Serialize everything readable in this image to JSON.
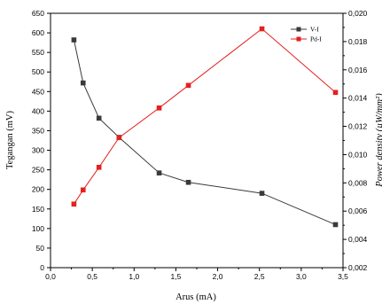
{
  "chart_data": {
    "type": "line",
    "xlabel": "Arus (mA)",
    "ylabel_left": "Tegangan (mV)",
    "ylabel_right": "Power density (µW/mm²)",
    "xlim": [
      0.0,
      3.5
    ],
    "ylim_left": [
      0,
      650
    ],
    "ylim_right": [
      0.002,
      0.02
    ],
    "x_ticks": [
      "0,0",
      "0,5",
      "1,0",
      "1,5",
      "2,0",
      "2,5",
      "3,0",
      "3,5"
    ],
    "y_left_ticks": [
      "0",
      "50",
      "100",
      "150",
      "200",
      "250",
      "300",
      "350",
      "400",
      "450",
      "500",
      "550",
      "600",
      "650"
    ],
    "y_right_ticks": [
      "0,002",
      "0,004",
      "0,006",
      "0,008",
      "0,010",
      "0,012",
      "0,014",
      "0,016",
      "0,018",
      "0,020"
    ],
    "grid": false,
    "legend_position": "top-right",
    "series": [
      {
        "name": "V-I",
        "axis": "left",
        "color": "#3a3a3a",
        "marker": "square",
        "x": [
          0.28,
          0.39,
          0.58,
          0.82,
          1.3,
          1.65,
          2.53,
          3.41
        ],
        "y": [
          582,
          472,
          382,
          333,
          242,
          218,
          190,
          110
        ]
      },
      {
        "name": "Pd-I",
        "axis": "right",
        "color": "#e32020",
        "marker": "square",
        "x": [
          0.28,
          0.39,
          0.58,
          0.82,
          1.3,
          1.65,
          2.53,
          3.41
        ],
        "y": [
          0.0065,
          0.0075,
          0.0091,
          0.0112,
          0.0133,
          0.0149,
          0.0189,
          0.0144
        ]
      }
    ]
  }
}
